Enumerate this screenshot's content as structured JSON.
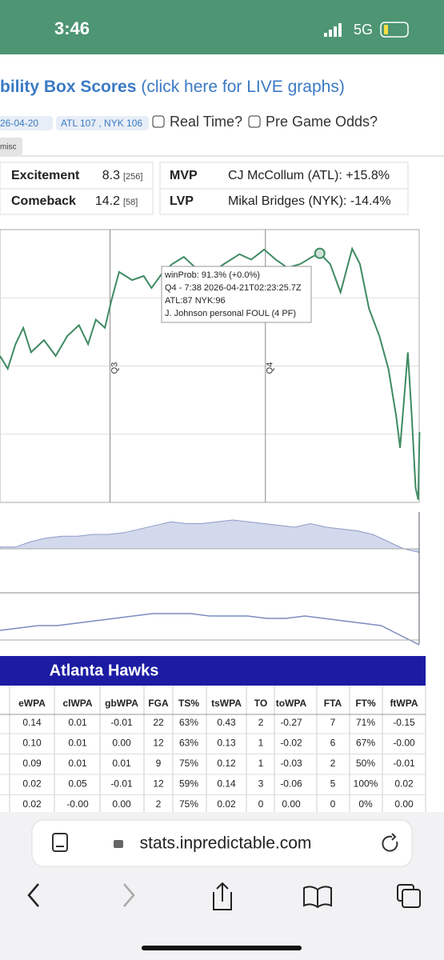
{
  "status_bar": {
    "time": "3:46",
    "network": "5G"
  },
  "header": {
    "title": "bility Box Scores",
    "link": "(click here for LIVE graphs)"
  },
  "controls": {
    "date": "26-04-20",
    "game": "ATL 107 , NYK 106",
    "real_time": "Real Time?",
    "pre_game": "Pre Game Odds?",
    "tab": "misc"
  },
  "summary": {
    "rows": [
      [
        "Excitement",
        "8.3",
        "[256]"
      ],
      [
        "Comeback",
        "14.2",
        "[58]"
      ]
    ],
    "players": [
      [
        "MVP",
        "CJ McCollum (ATL): +15.8%"
      ],
      [
        "LVP",
        "Mikal Bridges (NYK): -14.4%"
      ]
    ]
  },
  "chart_data": {
    "type": "line",
    "x": [
      15.5,
      16.1,
      16.7,
      17.3,
      17.9,
      18.9,
      19.8,
      20.7,
      21.6,
      22.3,
      22.9,
      23.6,
      24.1,
      24.7,
      25.7,
      26.6,
      27.2,
      28.1,
      28.8,
      29.7,
      30.6,
      31.5,
      32.8,
      34.0,
      34.9,
      35.9,
      36.8,
      37.7,
      38.7,
      39.6,
      40.2,
      41.0,
      41.8,
      42.7,
      43.3,
      44.0,
      44.8,
      45.5,
      46.1,
      46.4,
      46.7,
      47.0,
      47.3,
      47.6,
      47.8,
      47.9
    ],
    "series": [
      {
        "color": "#3f8a63",
        "values": [
          53.7,
          49,
          58,
          64,
          55,
          59.5,
          53.7,
          61,
          65,
          58,
          67,
          64,
          74,
          84.5,
          81.5,
          83,
          78.6,
          84.5,
          87.4,
          90,
          86,
          83,
          87.4,
          91,
          89,
          92.7,
          89,
          86,
          87.4,
          90,
          91.3,
          87.4,
          77,
          93,
          87.4,
          71,
          61,
          49,
          31.7,
          20,
          37.5,
          55,
          31.7,
          5.3,
          1,
          25.8
        ]
      }
    ],
    "xlim": [
      15.5,
      48
    ],
    "ylim": [
      0,
      100
    ],
    "xticks": [
      {
        "value": 24,
        "label": "Q3"
      },
      {
        "value": 36,
        "label": "Q4"
      }
    ],
    "yticks": [
      25,
      50,
      75
    ],
    "grid": true,
    "highlight": {
      "x": 40.2,
      "y": 91.3
    },
    "tooltip": [
      "winProb: 91.3% (+0.0%)",
      "Q4 - 7:38 2026-04-21T02:23:25.7Z",
      "ATL:87 NYK:96",
      "J. Johnson personal FOUL (4 PF)"
    ]
  },
  "sub_charts": [
    {
      "type": "area",
      "values": [
        0.05,
        0.05,
        0.2,
        0.3,
        0.35,
        0.35,
        0.4,
        0.4,
        0.45,
        0.55,
        0.65,
        0.75,
        0.7,
        0.7,
        0.75,
        0.8,
        0.75,
        0.7,
        0.65,
        0.6,
        0.7,
        0.6,
        0.55,
        0.5,
        0.4,
        0.2,
        0.0,
        -0.1
      ]
    },
    {
      "type": "line",
      "values": [
        0.2,
        0.25,
        0.3,
        0.3,
        0.35,
        0.4,
        0.45,
        0.5,
        0.55,
        0.55,
        0.55,
        0.5,
        0.5,
        0.5,
        0.45,
        0.45,
        0.5,
        0.45,
        0.4,
        0.35,
        0.3,
        0.1,
        -0.1
      ]
    }
  ],
  "table": {
    "title": "Atlanta Hawks",
    "columns": [
      "eWPA",
      "clWPA",
      "gbWPA",
      "FGA",
      "TS%",
      "tsWPA",
      "TO",
      "toWPA",
      "FTA",
      "FT%",
      "ftWPA"
    ],
    "rows": [
      [
        "0.14",
        "0.01",
        "-0.01",
        "22",
        "63%",
        "0.43",
        "2",
        "-0.27",
        "7",
        "71%",
        "-0.15"
      ],
      [
        "0.10",
        "0.01",
        "0.00",
        "12",
        "63%",
        "0.13",
        "1",
        "-0.02",
        "6",
        "67%",
        "-0.00"
      ],
      [
        "0.09",
        "0.01",
        "0.01",
        "9",
        "75%",
        "0.12",
        "1",
        "-0.03",
        "2",
        "50%",
        "-0.01"
      ],
      [
        "0.02",
        "0.05",
        "-0.01",
        "12",
        "59%",
        "0.14",
        "3",
        "-0.06",
        "5",
        "100%",
        "0.02"
      ],
      [
        "0.02",
        "-0.00",
        "0.00",
        "2",
        "75%",
        "0.02",
        "0",
        "0.00",
        "0",
        "0%",
        "0.00"
      ]
    ]
  },
  "browser": {
    "url": "stats.inpredictable.com"
  }
}
